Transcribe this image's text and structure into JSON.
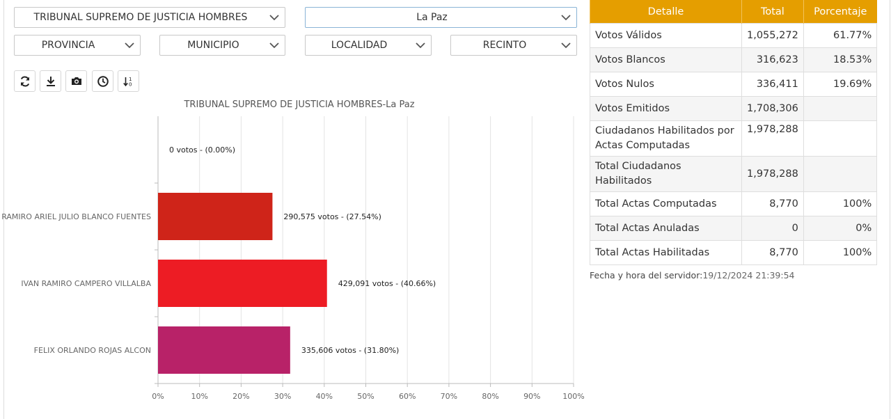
{
  "filters": {
    "election": "TRIBUNAL SUPREMO DE JUSTICIA HOMBRES",
    "department": "La Paz",
    "province": "PROVINCIA",
    "municipality": "MUNICIPIO",
    "locality": "LOCALIDAD",
    "venue": "RECINTO"
  },
  "toolbar": {
    "buttons": [
      "refresh-icon",
      "download-icon",
      "camera-icon",
      "clock-icon",
      "sort-icon"
    ]
  },
  "chart_data": {
    "type": "bar",
    "orientation": "horizontal",
    "title": "TRIBUNAL SUPREMO DE JUSTICIA HOMBRES-La Paz",
    "categories": [
      "",
      "RAMIRO ARIEL JULIO BLANCO FUENTES",
      "IVAN RAMIRO CAMPERO VILLALBA",
      "FELIX ORLANDO ROJAS ALCON"
    ],
    "values": [
      0.0,
      27.54,
      40.66,
      31.8
    ],
    "data_labels": [
      "0 votos - (0.00%)",
      "290,575 votos - (27.54%)",
      "429,091 votos - (40.66%)",
      "335,606 votos - (31.80%)"
    ],
    "colors": [
      "#cccccc",
      "#cf2419",
      "#ed1c24",
      "#b82268"
    ],
    "xlim": [
      0,
      100
    ],
    "x_ticks": [
      "0%",
      "10%",
      "20%",
      "30%",
      "40%",
      "50%",
      "60%",
      "70%",
      "80%",
      "90%",
      "100%"
    ],
    "grid": true
  },
  "table": {
    "headers": [
      "Detalle",
      "Total",
      "Porcentaje"
    ],
    "rows": [
      {
        "label": "Votos Válidos",
        "total": "1,055,272",
        "pct": "61.77%"
      },
      {
        "label": "Votos Blancos",
        "total": "316,623",
        "pct": "18.53%"
      },
      {
        "label": "Votos Nulos",
        "total": "336,411",
        "pct": "19.69%"
      },
      {
        "label": "Votos Emitidos",
        "total": "1,708,306",
        "pct": ""
      },
      {
        "label": "Ciudadanos Habilitados por Actas Computadas",
        "total": "1,978,288",
        "pct": ""
      },
      {
        "label": "Total Ciudadanos Habilitados",
        "total": "1,978,288",
        "pct": ""
      },
      {
        "label": "Total Actas Computadas",
        "total": "8,770",
        "pct": "100%"
      },
      {
        "label": "Total Actas Anuladas",
        "total": "0",
        "pct": "0%"
      },
      {
        "label": "Total Actas Habilitadas",
        "total": "8,770",
        "pct": "100%"
      }
    ]
  },
  "server_time": {
    "label": "Fecha y hora del servidor:",
    "value": "19/12/2024 21:39:54"
  },
  "colors": {
    "header_orange": "#e59e00",
    "active_border": "#8ab4d6"
  }
}
